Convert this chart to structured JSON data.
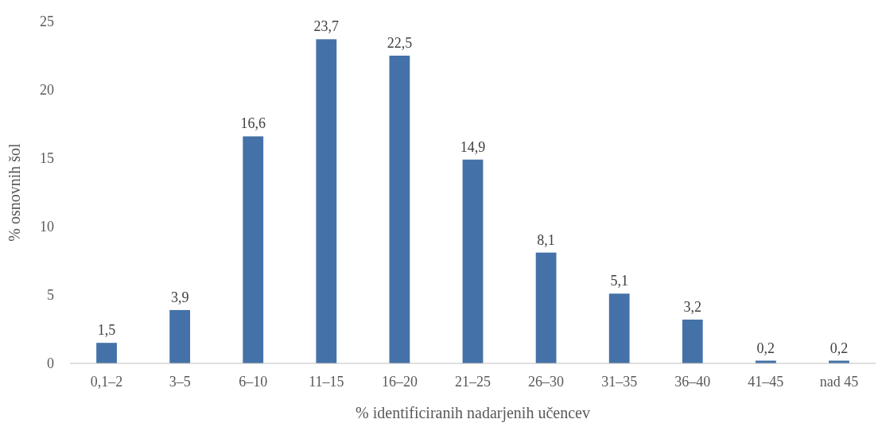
{
  "chart_data": {
    "type": "bar",
    "xlabel": "% identificiranih nadarjenih učencev",
    "ylabel": "% osnovnih šol",
    "categories": [
      "0,1–2",
      "3–5",
      "6–10",
      "11–15",
      "16–20",
      "21–25",
      "26–30",
      "31–35",
      "36–40",
      "41–45",
      "nad 45"
    ],
    "values": [
      1.5,
      3.9,
      16.6,
      23.7,
      22.5,
      14.9,
      8.1,
      5.1,
      3.2,
      0.2,
      0.2
    ],
    "value_labels": [
      "1,5",
      "3,9",
      "16,6",
      "23,7",
      "22,5",
      "14,9",
      "8,1",
      "5,1",
      "3,2",
      "0,2",
      "0,2"
    ],
    "color": "#4472a8",
    "ylim": [
      0,
      25
    ],
    "yticks": [
      0,
      5,
      10,
      15,
      20,
      25
    ],
    "grid": false
  }
}
